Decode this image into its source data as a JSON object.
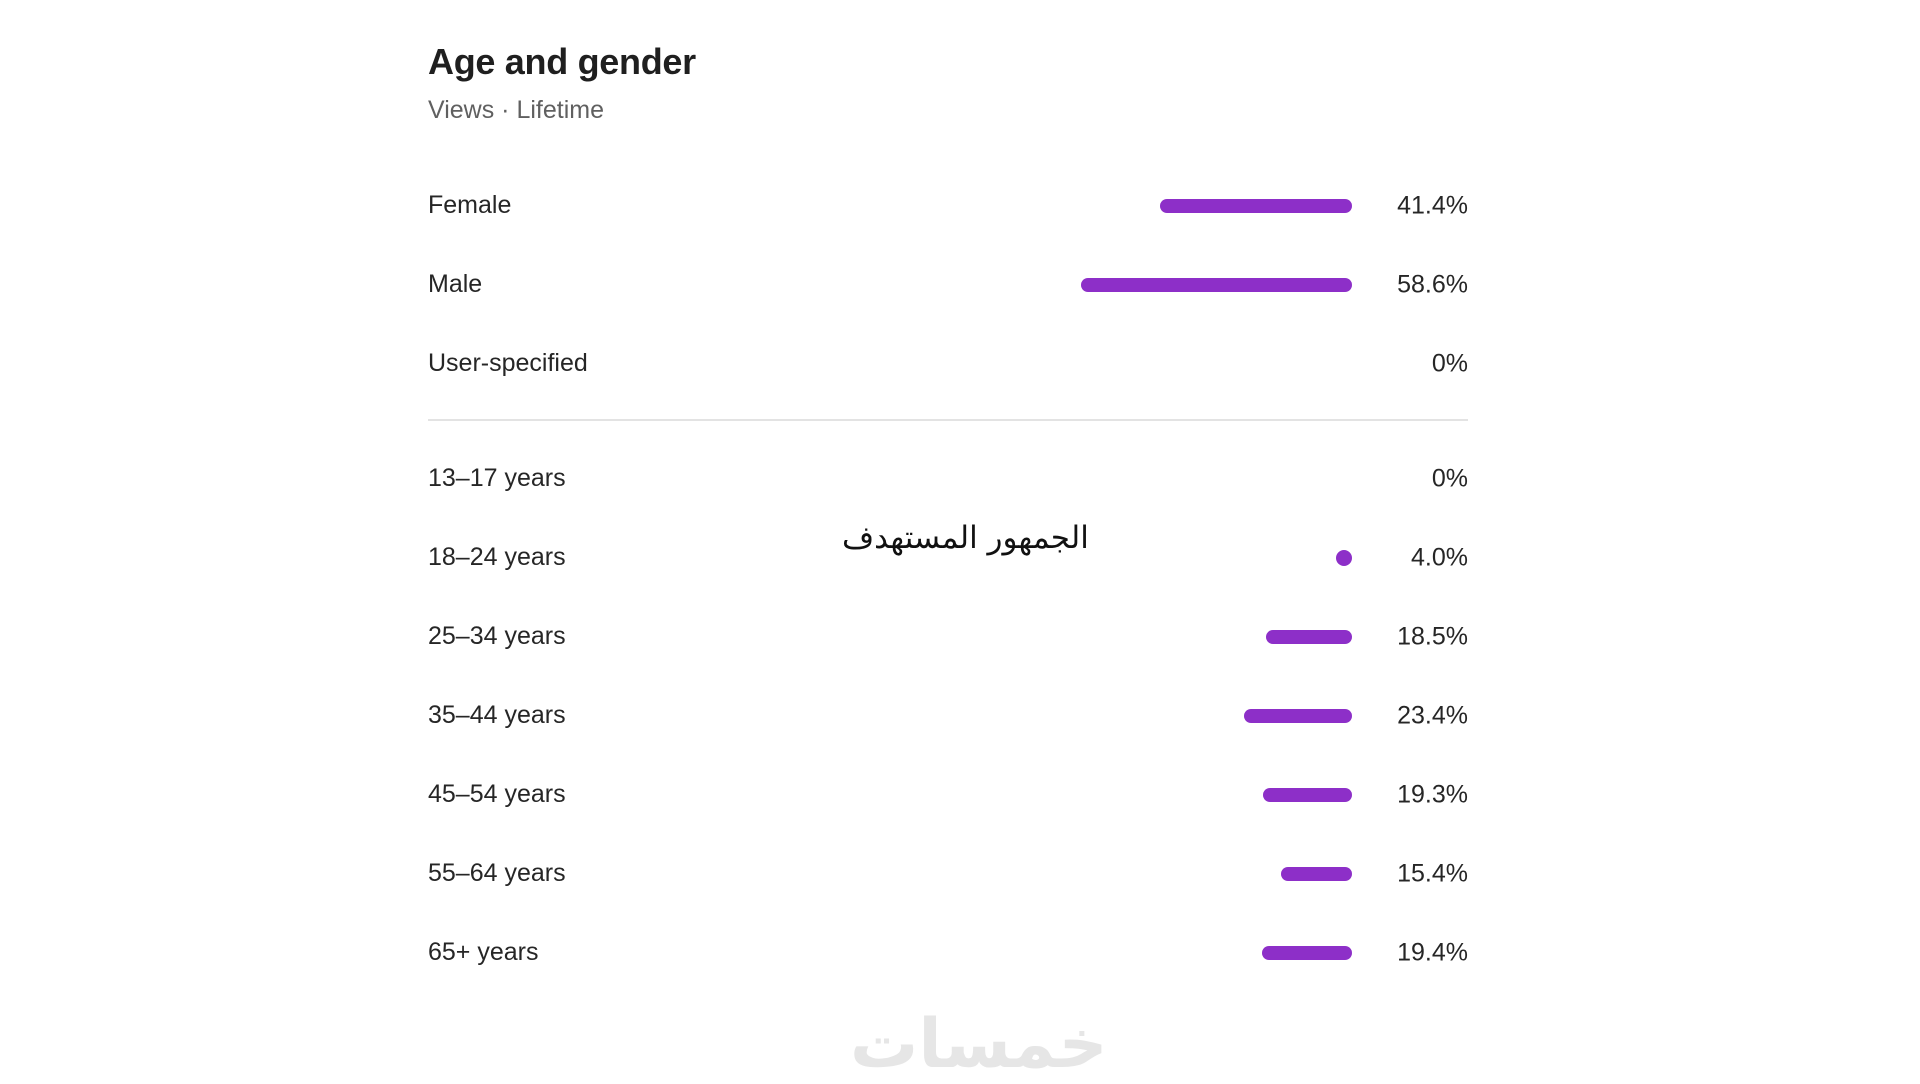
{
  "colors": {
    "bar": "#8d2fc8",
    "text": "#262626",
    "subtitle": "#606060",
    "divider": "#e3e3e3"
  },
  "overlay_text": "الجمهور المستهدف",
  "watermark_text": "خمسات",
  "chart_data": {
    "type": "bar",
    "orientation": "horizontal",
    "title": "Age and gender",
    "subtitle": "Views · Lifetime",
    "unit": "%",
    "xlim": [
      0,
      100
    ],
    "groups": [
      {
        "name": "gender",
        "rows": [
          {
            "label": "Female",
            "value": 41.4,
            "display": "41.4%"
          },
          {
            "label": "Male",
            "value": 58.6,
            "display": "58.6%"
          },
          {
            "label": "User-specified",
            "value": 0,
            "display": "0%"
          }
        ]
      },
      {
        "name": "age",
        "rows": [
          {
            "label": "13–17 years",
            "value": 0,
            "display": "0%"
          },
          {
            "label": "18–24 years",
            "value": 4.0,
            "display": "4.0%"
          },
          {
            "label": "25–34 years",
            "value": 18.5,
            "display": "18.5%"
          },
          {
            "label": "35–44 years",
            "value": 23.4,
            "display": "23.4%"
          },
          {
            "label": "45–54 years",
            "value": 19.3,
            "display": "19.3%"
          },
          {
            "label": "55–64 years",
            "value": 15.4,
            "display": "15.4%"
          },
          {
            "label": "65+ years",
            "value": 19.4,
            "display": "19.4%"
          }
        ]
      }
    ]
  }
}
